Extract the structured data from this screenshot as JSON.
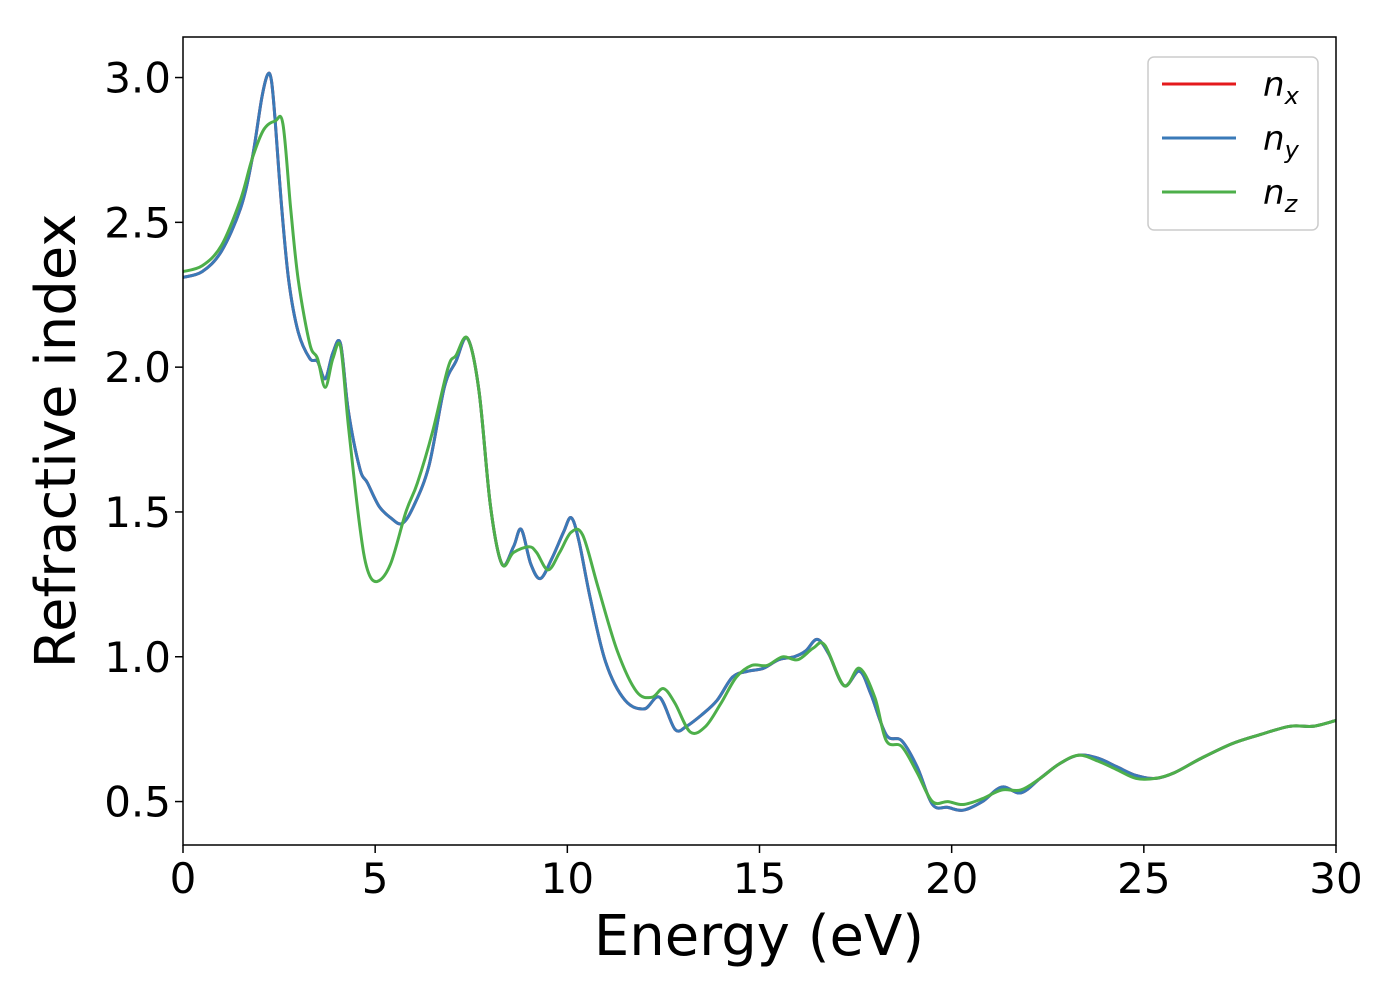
{
  "chart_data": {
    "type": "line",
    "xlabel": "Energy (eV)",
    "ylabel": "Refractive index",
    "xlim": [
      0,
      30
    ],
    "ylim": [
      0.35,
      3.14
    ],
    "xticks": [
      0,
      5,
      10,
      15,
      20,
      25,
      30
    ],
    "xtick_labels": [
      "0",
      "5",
      "10",
      "15",
      "20",
      "25",
      "30"
    ],
    "yticks": [
      0.5,
      1.0,
      1.5,
      2.0,
      2.5,
      3.0
    ],
    "ytick_labels": [
      "0.5",
      "1.0",
      "1.5",
      "2.0",
      "2.5",
      "3.0"
    ],
    "grid": false,
    "legend": "top-right",
    "series": [
      {
        "name": "n_x",
        "legend_main": "n",
        "legend_sub": "x",
        "color": "#e41a1c",
        "x": [
          0,
          0.5,
          1,
          1.5,
          1.8,
          2.05,
          2.2,
          2.3,
          2.4,
          2.55,
          2.75,
          3,
          3.3,
          3.5,
          3.7,
          3.9,
          4.1,
          4.3,
          4.6,
          4.8,
          5.1,
          5.4,
          5.7,
          6,
          6.4,
          6.8,
          7.1,
          7.4,
          7.7,
          8,
          8.3,
          8.6,
          8.8,
          9.05,
          9.3,
          9.6,
          9.9,
          10.1,
          10.3,
          10.6,
          11,
          11.5,
          12,
          12.4,
          12.8,
          13.1,
          13.5,
          13.9,
          14.3,
          14.7,
          15.1,
          15.5,
          15.9,
          16.2,
          16.5,
          16.8,
          17.2,
          17.6,
          17.9,
          18.3,
          18.7,
          19.1,
          19.5,
          19.9,
          20.3,
          20.8,
          21.3,
          21.8,
          22.3,
          22.8,
          23.3,
          23.8,
          24.3,
          24.8,
          25.3,
          25.8,
          26.5,
          27.3,
          28,
          28.8,
          29.4,
          30
        ],
        "y": [
          2.31,
          2.33,
          2.4,
          2.55,
          2.72,
          2.93,
          3.01,
          2.99,
          2.85,
          2.58,
          2.3,
          2.12,
          2.03,
          2.02,
          1.96,
          2.05,
          2.08,
          1.85,
          1.65,
          1.6,
          1.52,
          1.48,
          1.46,
          1.52,
          1.66,
          1.93,
          2.02,
          2.1,
          1.92,
          1.52,
          1.32,
          1.38,
          1.44,
          1.32,
          1.27,
          1.34,
          1.43,
          1.48,
          1.4,
          1.2,
          0.98,
          0.85,
          0.82,
          0.86,
          0.75,
          0.76,
          0.8,
          0.85,
          0.93,
          0.95,
          0.96,
          0.99,
          1.0,
          1.02,
          1.06,
          1.01,
          0.9,
          0.95,
          0.87,
          0.73,
          0.71,
          0.62,
          0.49,
          0.48,
          0.47,
          0.5,
          0.55,
          0.53,
          0.58,
          0.63,
          0.66,
          0.65,
          0.62,
          0.59,
          0.58,
          0.6,
          0.65,
          0.7,
          0.73,
          0.76,
          0.76,
          0.78
        ]
      },
      {
        "name": "n_y",
        "legend_main": "n",
        "legend_sub": "y",
        "color": "#3a7ab8",
        "x": [
          0,
          0.5,
          1,
          1.5,
          1.8,
          2.05,
          2.2,
          2.3,
          2.4,
          2.55,
          2.75,
          3,
          3.3,
          3.5,
          3.7,
          3.9,
          4.1,
          4.3,
          4.6,
          4.8,
          5.1,
          5.4,
          5.7,
          6,
          6.4,
          6.8,
          7.1,
          7.4,
          7.7,
          8,
          8.3,
          8.6,
          8.8,
          9.05,
          9.3,
          9.6,
          9.9,
          10.1,
          10.3,
          10.6,
          11,
          11.5,
          12,
          12.4,
          12.8,
          13.1,
          13.5,
          13.9,
          14.3,
          14.7,
          15.1,
          15.5,
          15.9,
          16.2,
          16.5,
          16.8,
          17.2,
          17.6,
          17.9,
          18.3,
          18.7,
          19.1,
          19.5,
          19.9,
          20.3,
          20.8,
          21.3,
          21.8,
          22.3,
          22.8,
          23.3,
          23.8,
          24.3,
          24.8,
          25.3,
          25.8,
          26.5,
          27.3,
          28,
          28.8,
          29.4,
          30
        ],
        "y": [
          2.31,
          2.33,
          2.4,
          2.55,
          2.72,
          2.93,
          3.01,
          2.99,
          2.85,
          2.58,
          2.3,
          2.12,
          2.03,
          2.02,
          1.96,
          2.05,
          2.08,
          1.85,
          1.65,
          1.6,
          1.52,
          1.48,
          1.46,
          1.52,
          1.66,
          1.93,
          2.02,
          2.1,
          1.92,
          1.52,
          1.32,
          1.38,
          1.44,
          1.32,
          1.27,
          1.34,
          1.43,
          1.48,
          1.4,
          1.2,
          0.98,
          0.85,
          0.82,
          0.86,
          0.75,
          0.76,
          0.8,
          0.85,
          0.93,
          0.95,
          0.96,
          0.99,
          1.0,
          1.02,
          1.06,
          1.01,
          0.9,
          0.95,
          0.87,
          0.73,
          0.71,
          0.62,
          0.49,
          0.48,
          0.47,
          0.5,
          0.55,
          0.53,
          0.58,
          0.63,
          0.66,
          0.65,
          0.62,
          0.59,
          0.58,
          0.6,
          0.65,
          0.7,
          0.73,
          0.76,
          0.76,
          0.78
        ]
      },
      {
        "name": "n_z",
        "legend_main": "n",
        "legend_sub": "z",
        "color": "#4daf4a",
        "x": [
          0,
          0.5,
          1,
          1.5,
          1.8,
          2.1,
          2.4,
          2.6,
          2.8,
          3,
          3.3,
          3.5,
          3.7,
          3.9,
          4.1,
          4.3,
          4.6,
          4.8,
          5.05,
          5.4,
          5.8,
          6.1,
          6.5,
          6.9,
          7.1,
          7.4,
          7.7,
          8,
          8.3,
          8.6,
          9,
          9.2,
          9.5,
          9.8,
          10.1,
          10.4,
          10.8,
          11.3,
          11.8,
          12.2,
          12.5,
          12.8,
          13.2,
          13.6,
          14,
          14.4,
          14.8,
          15.2,
          15.6,
          16,
          16.4,
          16.7,
          17.2,
          17.6,
          18,
          18.3,
          18.7,
          19.1,
          19.5,
          19.9,
          20.3,
          20.8,
          21.3,
          21.8,
          22.3,
          22.8,
          23.3,
          23.8,
          24.3,
          24.8,
          25.3,
          25.8,
          26.5,
          27.3,
          28,
          28.8,
          29.4,
          30
        ],
        "y": [
          2.33,
          2.35,
          2.42,
          2.58,
          2.72,
          2.82,
          2.85,
          2.84,
          2.55,
          2.3,
          2.08,
          2.03,
          1.93,
          2.03,
          2.07,
          1.8,
          1.45,
          1.3,
          1.26,
          1.32,
          1.5,
          1.6,
          1.78,
          2.0,
          2.04,
          2.1,
          1.92,
          1.52,
          1.32,
          1.36,
          1.38,
          1.36,
          1.3,
          1.36,
          1.43,
          1.42,
          1.24,
          1.02,
          0.88,
          0.86,
          0.89,
          0.84,
          0.74,
          0.76,
          0.84,
          0.93,
          0.97,
          0.97,
          1.0,
          0.99,
          1.03,
          1.04,
          0.9,
          0.96,
          0.86,
          0.71,
          0.69,
          0.6,
          0.5,
          0.5,
          0.49,
          0.51,
          0.54,
          0.54,
          0.58,
          0.63,
          0.66,
          0.64,
          0.61,
          0.58,
          0.58,
          0.6,
          0.65,
          0.7,
          0.73,
          0.76,
          0.76,
          0.78
        ]
      }
    ]
  }
}
